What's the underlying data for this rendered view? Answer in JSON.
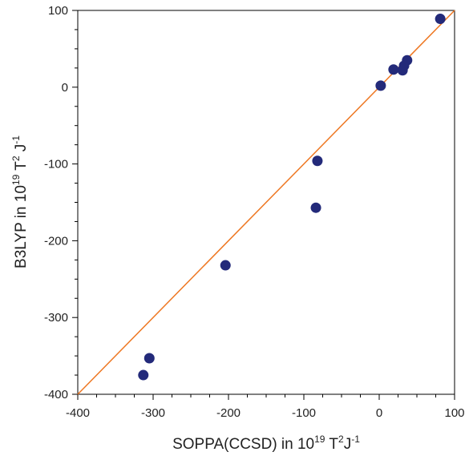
{
  "chart_data": {
    "type": "scatter",
    "xlabel": {
      "pre": "SOPPA(CCSD) in 10",
      "exp1": "19",
      "mid1": " T",
      "exp2": "2",
      "mid2": "J",
      "exp3": "-1"
    },
    "ylabel": {
      "pre": "B3LYP in 10",
      "exp1": "19",
      "mid1": " T",
      "exp2": "2",
      "mid2": " J",
      "exp3": "-1"
    },
    "xlim": [
      -400,
      100
    ],
    "ylim": [
      -400,
      100
    ],
    "xticks": [
      "-400",
      "-300",
      "-200",
      "-100",
      "0",
      "100"
    ],
    "yticks": [
      "-400",
      "-300",
      "-200",
      "-100",
      "0",
      "100"
    ],
    "grid": false,
    "reference_line": {
      "type": "y = x",
      "color": "#ee7722"
    },
    "marker_color": "#232a7a",
    "points": [
      {
        "x": -313,
        "y": -375
      },
      {
        "x": -305,
        "y": -353
      },
      {
        "x": -204,
        "y": -232
      },
      {
        "x": -84,
        "y": -157
      },
      {
        "x": -82,
        "y": -96
      },
      {
        "x": 2,
        "y": 2
      },
      {
        "x": 19,
        "y": 23
      },
      {
        "x": 31,
        "y": 22
      },
      {
        "x": 33,
        "y": 28
      },
      {
        "x": 37,
        "y": 35
      },
      {
        "x": 81,
        "y": 89
      }
    ]
  }
}
